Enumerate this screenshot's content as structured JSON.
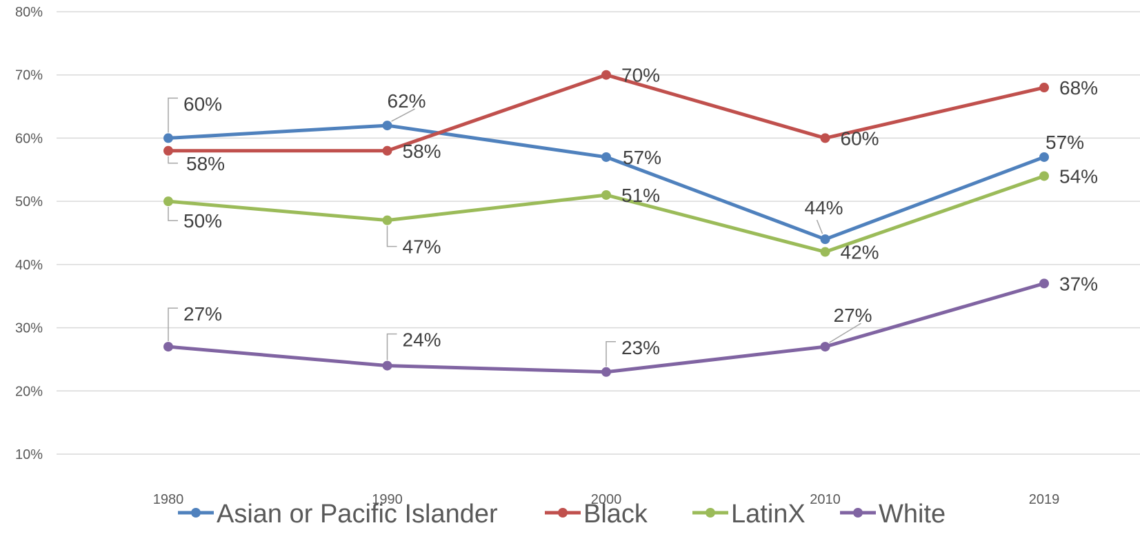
{
  "chart_data": {
    "type": "line",
    "title": "",
    "xlabel": "",
    "ylabel": "",
    "categories": [
      "1980",
      "1990",
      "2000",
      "2010",
      "2019"
    ],
    "ylim": [
      10,
      80
    ],
    "yticks": [
      10,
      20,
      30,
      40,
      50,
      60,
      70,
      80
    ],
    "ytick_labels": [
      "10%",
      "20%",
      "30%",
      "40%",
      "50%",
      "60%",
      "70%",
      "80%"
    ],
    "grid": true,
    "legend_position": "bottom",
    "series": [
      {
        "name": "Asian or Pacific Islander",
        "color": "#4f81bd",
        "values": [
          60,
          62,
          57,
          44,
          57
        ],
        "labels": [
          "60%",
          "62%",
          "57%",
          "44%",
          "57%"
        ]
      },
      {
        "name": "Black",
        "color": "#c0504d",
        "values": [
          58,
          58,
          70,
          60,
          68
        ],
        "labels": [
          "58%",
          "58%",
          "70%",
          "60%",
          "68%"
        ]
      },
      {
        "name": "LatinX",
        "color": "#9bbb59",
        "values": [
          50,
          47,
          51,
          42,
          54
        ],
        "labels": [
          "50%",
          "47%",
          "51%",
          "42%",
          "54%"
        ]
      },
      {
        "name": "White",
        "color": "#8064a2",
        "values": [
          27,
          24,
          23,
          27,
          37
        ],
        "labels": [
          "27%",
          "24%",
          "23%",
          "27%",
          "37%"
        ]
      }
    ]
  }
}
